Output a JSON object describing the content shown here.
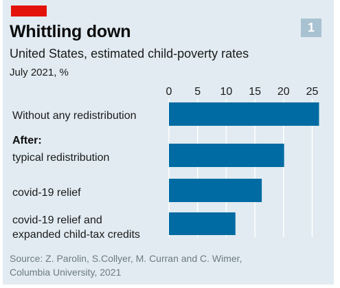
{
  "badge": "1",
  "chart_data": {
    "type": "bar",
    "orientation": "horizontal",
    "title": "Whittling down",
    "subtitle": "United States, estimated child-poverty rates",
    "note": "July 2021, %",
    "group_label": "After:",
    "categories": [
      "Without any redistribution",
      "typical redistribution",
      "covid-19 relief",
      "covid-19 relief and expanded child-tax credits"
    ],
    "category_lines": [
      [
        "Without any redistribution"
      ],
      [
        "typical redistribution"
      ],
      [
        "covid-19 relief"
      ],
      [
        "covid-19 relief and",
        "expanded child-tax credits"
      ]
    ],
    "values": [
      26.2,
      20.1,
      16.2,
      11.6
    ],
    "xlim": [
      0,
      26.5
    ],
    "xticks": [
      0,
      5,
      10,
      15,
      20,
      25
    ],
    "xaxis_position": "top",
    "grid": true,
    "bar_color": "#006ba2",
    "grid_color": "#ffffff",
    "background_color": "#e1ebf1",
    "accent_color": "#e3120b",
    "source_lines": [
      "Source: Z. Parolin, S.Collyer, M. Curran and C. Wimer,",
      "Columbia University, 2021"
    ]
  }
}
